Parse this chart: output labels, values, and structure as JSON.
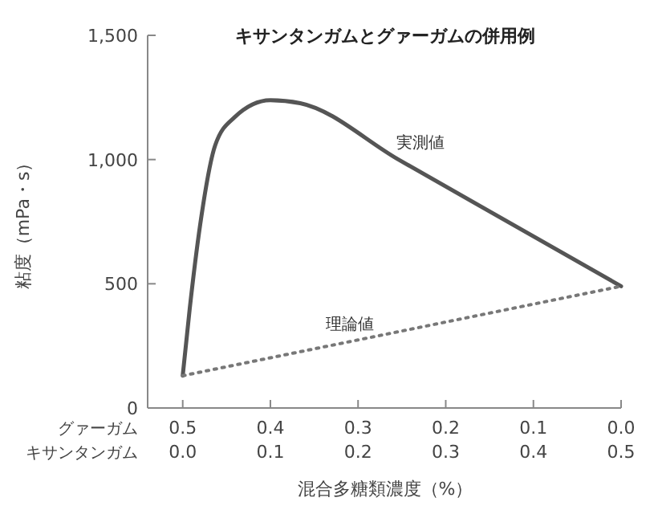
{
  "chart_data": {
    "type": "line",
    "title": "キサンタンガムとグァーガムの併用例",
    "xlabel": "混合多糖類濃度（%）",
    "ylabel": "粘度（mPa・s）",
    "xlim": [
      -0.04,
      0.5
    ],
    "xticks": [
      {
        "value": 0,
        "label": "0.0"
      },
      0.1,
      0.2,
      0.3,
      0.4,
      0.5
    ],
    "x2lim": [
      0.54,
      0.0
    ],
    "x2ticks": [
      0.5,
      0.4,
      0.3,
      0.2,
      0.1,
      {
        "value": 0,
        "label": "0.0"
      }
    ],
    "ylim": [
      0,
      1500
    ],
    "yticks": [
      0,
      500,
      {
        "value": 1000,
        "label": "1,000"
      },
      {
        "value": 1500,
        "label": "1,500"
      }
    ],
    "annotations": [
      "グァーガム",
      "キサンタンガム"
    ],
    "grid": false,
    "series": [
      {
        "name": "実測値",
        "color": "#555555",
        "line_style": "solid",
        "x": [
          0,
          0.008,
          0.02,
          0.037,
          0.059,
          0.1,
          0.134,
          0.246,
          0.5
        ],
        "values": [
          130,
          400,
          740,
          1057,
          1170,
          1239,
          1227,
          1000,
          490
        ]
      },
      {
        "name": "理論値",
        "color": "#777777",
        "line_style": "dotted",
        "x": [
          0,
          0.5
        ],
        "values": [
          130,
          490
        ]
      }
    ]
  }
}
